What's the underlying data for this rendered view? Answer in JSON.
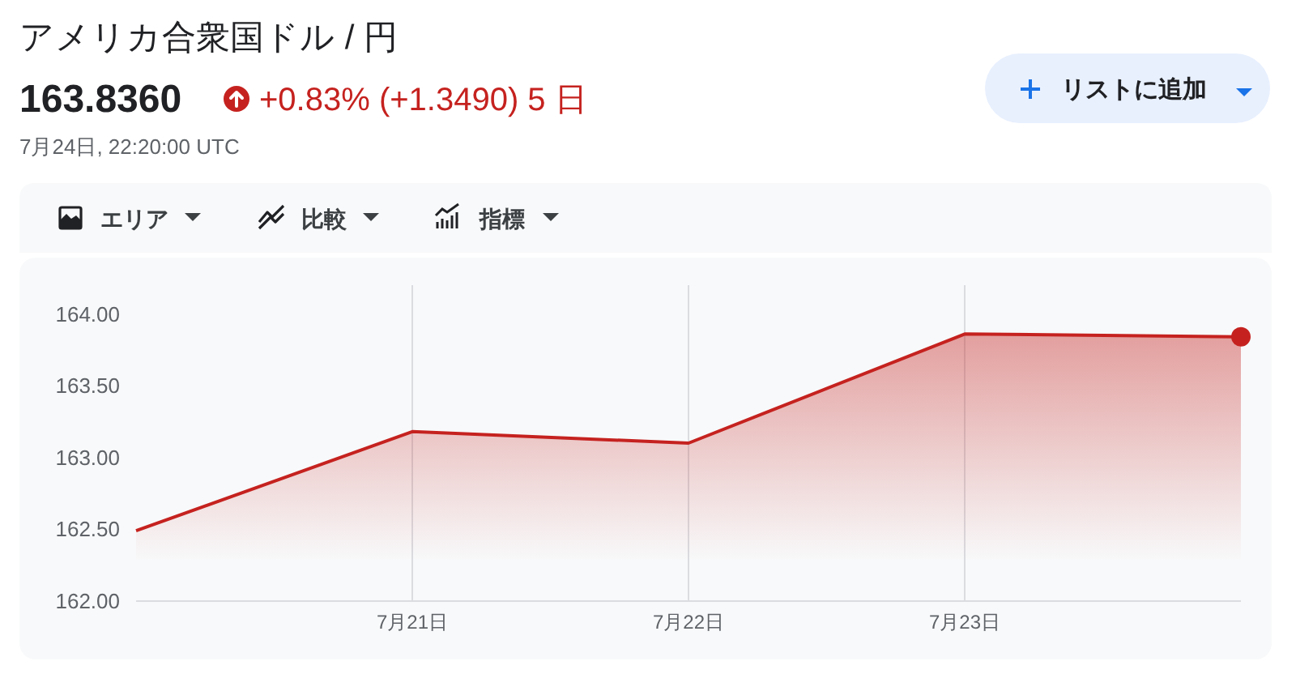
{
  "chart_data": {
    "type": "area",
    "title": "アメリカ合衆国ドル / 円",
    "subtitle": "163.8360",
    "annotations": [
      "+0.83% (+1.3490) 5 日",
      "7月24日, 22:20:00 UTC",
      "リストに追加",
      "エリア",
      "比較",
      "指標"
    ],
    "x": [
      "--07-20",
      "--07-21",
      "--07-22",
      "--07-23",
      "--07-24"
    ],
    "xlim": [
      "--07-20",
      "--07-24"
    ],
    "xticks": [
      {
        "value": "--07-21",
        "label": "7月21日"
      },
      {
        "value": "--07-22",
        "label": "7月22日"
      },
      {
        "value": "--07-23",
        "label": "7月23日"
      }
    ],
    "ylim": [
      162.0,
      164.2
    ],
    "yticks": [
      {
        "value": 162,
        "label": "162.00"
      },
      {
        "value": 162.5,
        "label": "162.50"
      },
      {
        "value": 163,
        "label": "163.00"
      },
      {
        "value": 163.5,
        "label": "163.50"
      },
      {
        "value": 164,
        "label": "164.00"
      }
    ],
    "series": [
      {
        "color": "#c5221f",
        "values": [
          162.49,
          163.18,
          163.1,
          163.86,
          163.84
        ]
      },
      {
        "type": "scatter",
        "color": "#c5221f",
        "x": [
          "--07-24"
        ],
        "values": [
          163.84
        ],
        "marker": "circle"
      }
    ],
    "grid": "x"
  }
}
